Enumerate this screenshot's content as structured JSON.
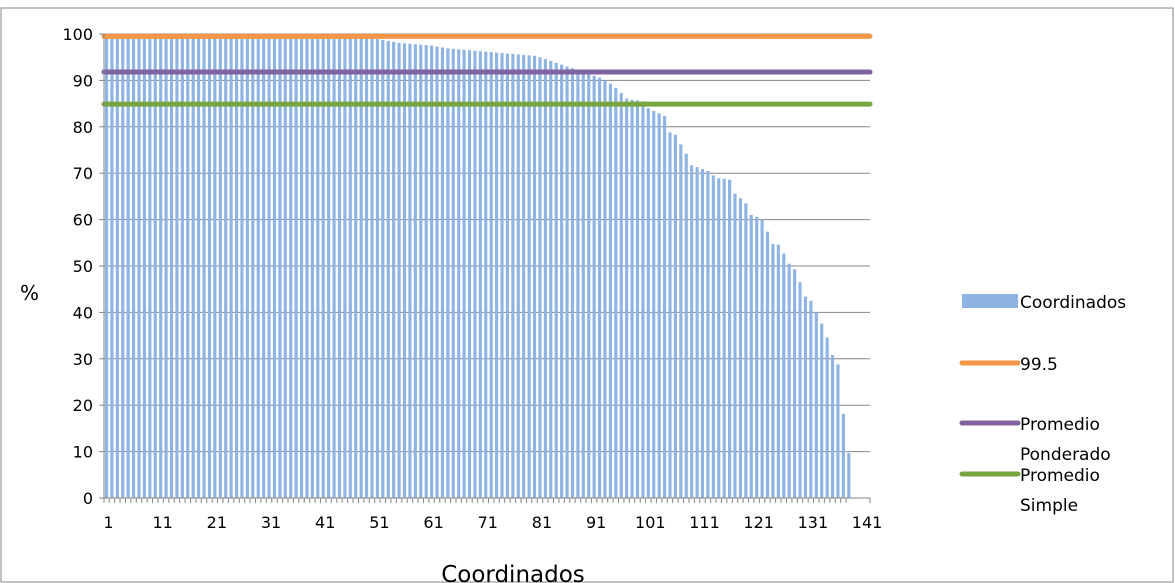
{
  "chart_data": {
    "type": "bar",
    "xlabel": "Coordinados",
    "ylabel": "%",
    "ylim": [
      0,
      100
    ],
    "ytick_labels": [
      "0",
      "10",
      "20",
      "30",
      "40",
      "50",
      "60",
      "70",
      "80",
      "90",
      "100"
    ],
    "xtick_labels": [
      "1",
      "11",
      "21",
      "31",
      "41",
      "51",
      "61",
      "71",
      "81",
      "91",
      "101",
      "111",
      "121",
      "131",
      "141"
    ],
    "grid": true,
    "legend_position": "right",
    "bar_series": {
      "name": "Coordinados",
      "color": "#8eb4e3",
      "values": [
        100,
        99.9,
        99.9,
        99.9,
        99.9,
        99.9,
        99.9,
        99.9,
        99.9,
        99.9,
        99.9,
        99.9,
        99.9,
        99.9,
        99.9,
        99.9,
        99.9,
        99.9,
        99.9,
        99.9,
        99.9,
        99.9,
        99.9,
        99.9,
        99.9,
        99.9,
        99.9,
        99.9,
        99.9,
        99.9,
        99.9,
        99.9,
        99.9,
        99.9,
        99.9,
        99.9,
        99.9,
        99.9,
        99.9,
        99.9,
        99.9,
        99.9,
        99.9,
        99.9,
        99.8,
        99.8,
        99.7,
        99.6,
        99.5,
        99.3,
        98.9,
        98.7,
        98.5,
        98.3,
        98.1,
        98,
        97.9,
        97.8,
        97.7,
        97.6,
        97.5,
        97.3,
        97.1,
        96.9,
        96.8,
        96.7,
        96.6,
        96.5,
        96.4,
        96.3,
        96.2,
        96.1,
        96,
        95.9,
        95.8,
        95.7,
        95.6,
        95.5,
        95.4,
        95.3,
        95,
        94.6,
        94.2,
        93.8,
        93.4,
        93,
        92.6,
        92.2,
        91.8,
        91.4,
        91,
        90.6,
        90,
        89.3,
        88.4,
        87.3,
        86.1,
        85.8,
        85.7,
        85.5,
        84,
        83.4,
        82.9,
        82.3,
        78.8,
        78.3,
        76.2,
        74.2,
        71.7,
        71.3,
        70.9,
        70.5,
        69.5,
        68.9,
        68.8,
        68.6,
        65.6,
        64.6,
        63.5,
        61,
        60.6,
        60,
        57.4,
        54.7,
        54.6,
        52.7,
        50.5,
        49.3,
        46.5,
        43.4,
        42.5,
        40,
        37.6,
        34.6,
        30.8,
        28.8,
        18.1,
        9.7
      ]
    },
    "reference_lines": [
      {
        "name": "99.5",
        "value": 99.5,
        "color": "#f79646"
      },
      {
        "name": "Promedio Ponderado",
        "value": 91.8,
        "color": "#8064a2"
      },
      {
        "name": "Promedio Simple",
        "value": 84.9,
        "color": "#77a640"
      }
    ],
    "legend": [
      {
        "label": "Coordinados",
        "kind": "bar",
        "color": "#8eb4e3"
      },
      {
        "label": "99.5",
        "kind": "line",
        "color": "#f79646"
      },
      {
        "label_lines": [
          "Promedio",
          "Ponderado"
        ],
        "kind": "line",
        "color": "#8064a2"
      },
      {
        "label_lines": [
          "Promedio",
          "Simple"
        ],
        "kind": "line",
        "color": "#77a640"
      }
    ]
  }
}
